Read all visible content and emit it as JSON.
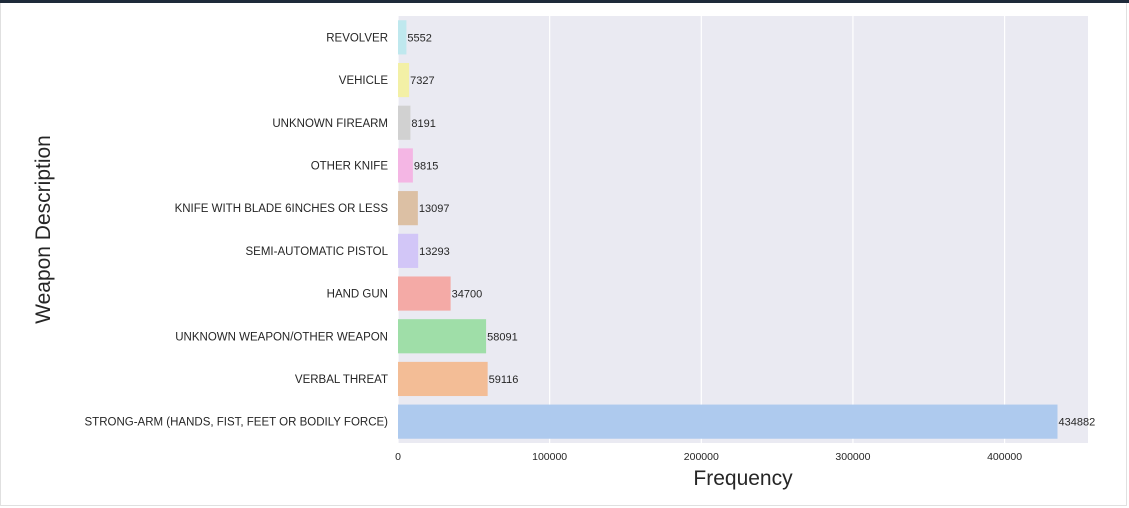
{
  "chart_data": {
    "type": "bar",
    "orientation": "horizontal",
    "xlabel": "Frequency",
    "ylabel": "Weapon Description",
    "xlim": [
      0,
      455000
    ],
    "xticks": [
      0,
      100000,
      200000,
      300000,
      400000
    ],
    "grid": true,
    "categories": [
      "REVOLVER",
      "VEHICLE",
      "UNKNOWN FIREARM",
      "OTHER KNIFE",
      "KNIFE WITH BLADE 6INCHES OR LESS",
      "SEMI-AUTOMATIC PISTOL",
      "HAND GUN",
      "UNKNOWN WEAPON/OTHER WEAPON",
      "VERBAL THREAT",
      "STRONG-ARM (HANDS, FIST, FEET OR BODILY FORCE)"
    ],
    "values": [
      5552,
      7327,
      8191,
      9815,
      13097,
      13293,
      34700,
      58091,
      59116,
      434882
    ],
    "colors": [
      "#bfe8ee",
      "#f3f0a6",
      "#d1d1d1",
      "#f4b6e4",
      "#dcc0a4",
      "#d2c6f7",
      "#f4aaa6",
      "#9fdea8",
      "#f3bd96",
      "#aecaee"
    ],
    "plot_background": "#eaeaf2",
    "grid_color": "#ffffff"
  }
}
